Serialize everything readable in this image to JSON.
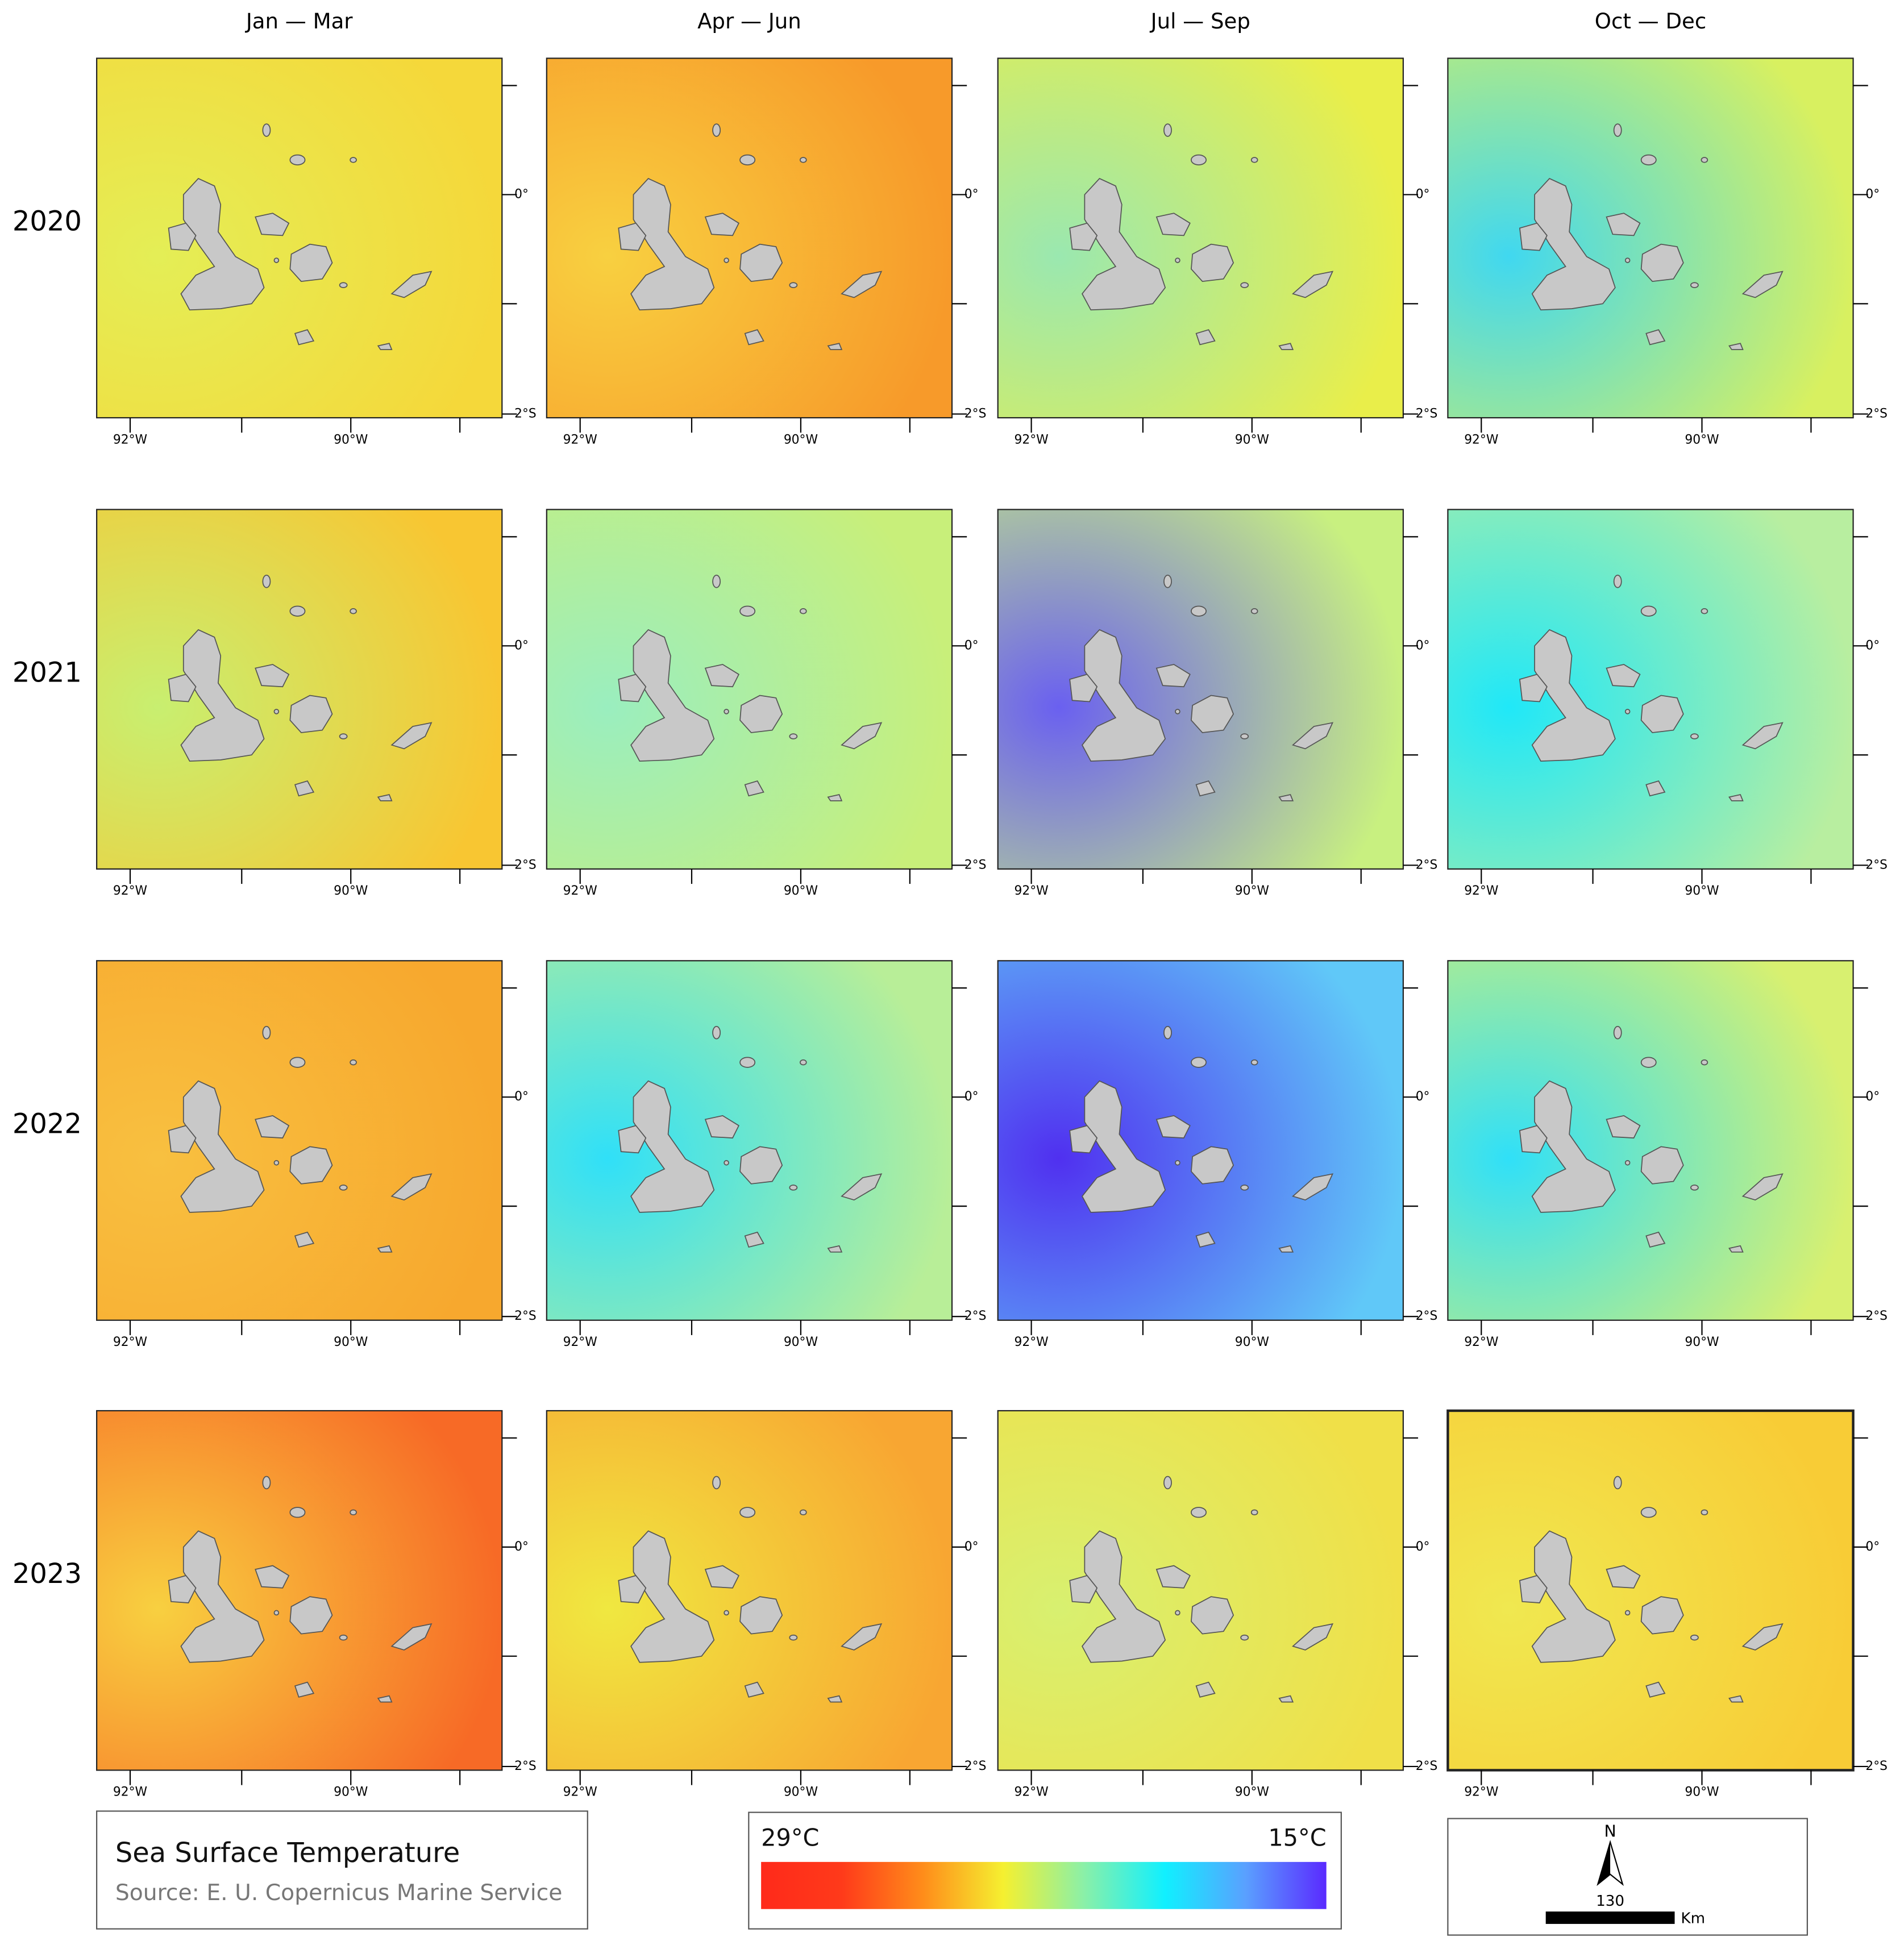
{
  "columns": [
    "Jan — Mar",
    "Apr — Jun",
    "Jul — Sep",
    "Oct — Dec"
  ],
  "rows": [
    {
      "year": "2020",
      "panels": [
        {
          "base": "#f5d83a",
          "accent": "#e4ee56"
        },
        {
          "base": "#f79a2a",
          "accent": "#f8d040"
        },
        {
          "base": "#e9ee4a",
          "accent": "#9ae8b0"
        },
        {
          "base": "#d8f060",
          "accent": "#40d8f0"
        }
      ]
    },
    {
      "year": "2021",
      "panels": [
        {
          "base": "#f8c632",
          "accent": "#c8ef70"
        },
        {
          "base": "#c8ef7a",
          "accent": "#9aeebf"
        },
        {
          "base": "#c8f080",
          "accent": "#6a60f0"
        },
        {
          "base": "#b8eea0",
          "accent": "#20e8f8"
        }
      ]
    },
    {
      "year": "2022",
      "panels": [
        {
          "base": "#f7a82e",
          "accent": "#f8c040"
        },
        {
          "base": "#b8ee98",
          "accent": "#30e0f8"
        },
        {
          "base": "#60c8f8",
          "accent": "#5030f0"
        },
        {
          "base": "#d8f070",
          "accent": "#30e0f8"
        }
      ]
    },
    {
      "year": "2023",
      "panels": [
        {
          "base": "#f76a26",
          "accent": "#f8d040"
        },
        {
          "base": "#f8a632",
          "accent": "#f0e840"
        },
        {
          "base": "#f0e048",
          "accent": "#d8f070"
        },
        {
          "base": "#f8cc36",
          "accent": "#f0e850"
        }
      ]
    }
  ],
  "lat_labels": [
    "0°",
    "2°S"
  ],
  "lon_labels": [
    "92°W",
    "90°W"
  ],
  "title": "Sea Surface Temperature",
  "source": "Source: E. U. Copernicus Marine Service",
  "colorbar": {
    "max_label": "29°C",
    "min_label": "15°C",
    "colors": [
      "#ff2a1a",
      "#ff3a1a",
      "#ff8c1a",
      "#f5f030",
      "#8af0a8",
      "#10f0ff",
      "#5aa0ff",
      "#5a2aff"
    ]
  },
  "scale": {
    "north": "N",
    "distance": "130",
    "unit": "Km"
  }
}
